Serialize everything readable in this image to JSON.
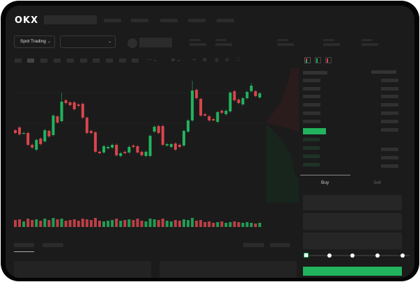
{
  "header": {
    "logo": "OKX",
    "nav_count": 5
  },
  "toolbar": {
    "market_select": "Spot Trading",
    "pair_select": ""
  },
  "order_book": {
    "view_icons": [
      "book-both-icon",
      "book-bids-icon",
      "book-asks-icon"
    ]
  },
  "trade": {
    "tabs": [
      "Buy",
      "Sell"
    ],
    "active_tab": "Buy",
    "slider_percent": 0,
    "slider_stops": [
      0,
      25,
      50,
      75,
      100
    ]
  },
  "colors": {
    "up": "#22b35e",
    "down": "#d9454d",
    "background": "#1b1b1b",
    "accent": "#22b35e"
  },
  "chart_data": {
    "type": "candlestick",
    "candles": [
      [
        64,
        60,
        66,
        58
      ],
      [
        68,
        58,
        70,
        56
      ],
      [
        59,
        60,
        61,
        58
      ],
      [
        60,
        43,
        62,
        41
      ],
      [
        43,
        39,
        45,
        37
      ],
      [
        36,
        50,
        52,
        34
      ],
      [
        52,
        44,
        54,
        42
      ],
      [
        48,
        64,
        66,
        46
      ],
      [
        63,
        55,
        65,
        53
      ],
      [
        57,
        85,
        87,
        55
      ],
      [
        84,
        75,
        86,
        73
      ],
      [
        77,
        105,
        118,
        75
      ],
      [
        107,
        103,
        109,
        101
      ],
      [
        104,
        100,
        106,
        98
      ],
      [
        104,
        94,
        106,
        92
      ],
      [
        101,
        99,
        103,
        97
      ],
      [
        102,
        82,
        104,
        80
      ],
      [
        82,
        60,
        84,
        58
      ],
      [
        63,
        60,
        65,
        58
      ],
      [
        61,
        33,
        63,
        31
      ],
      [
        33,
        31,
        35,
        29
      ],
      [
        32,
        41,
        43,
        30
      ],
      [
        38,
        40,
        42,
        36
      ],
      [
        39,
        43,
        45,
        37
      ],
      [
        43,
        28,
        45,
        26
      ],
      [
        27,
        31,
        33,
        25
      ],
      [
        33,
        31,
        35,
        29
      ],
      [
        32,
        40,
        42,
        30
      ],
      [
        42,
        40,
        44,
        38
      ],
      [
        41,
        32,
        43,
        30
      ],
      [
        33,
        28,
        35,
        26
      ],
      [
        27,
        33,
        35,
        25
      ],
      [
        27,
        56,
        58,
        25
      ],
      [
        62,
        69,
        71,
        60
      ],
      [
        70,
        60,
        72,
        58
      ],
      [
        70,
        43,
        72,
        41
      ],
      [
        42,
        44,
        46,
        40
      ],
      [
        40,
        44,
        46,
        38
      ],
      [
        45,
        36,
        47,
        34
      ],
      [
        43,
        40,
        45,
        38
      ],
      [
        42,
        63,
        65,
        40
      ],
      [
        62,
        78,
        80,
        60
      ],
      [
        78,
        121,
        135,
        76
      ],
      [
        122,
        110,
        124,
        108
      ],
      [
        109,
        85,
        111,
        83
      ],
      [
        87,
        85,
        89,
        83
      ],
      [
        84,
        78,
        86,
        76
      ],
      [
        80,
        78,
        82,
        77
      ],
      [
        76,
        90,
        92,
        74
      ],
      [
        92,
        89,
        94,
        87
      ],
      [
        87,
        92,
        94,
        85
      ],
      [
        91,
        118,
        120,
        89
      ],
      [
        120,
        107,
        122,
        105
      ],
      [
        108,
        103,
        110,
        101
      ],
      [
        101,
        110,
        112,
        99
      ],
      [
        110,
        119,
        121,
        108
      ],
      [
        120,
        128,
        132,
        118
      ],
      [
        120,
        113,
        122,
        111
      ],
      [
        111,
        117,
        119,
        109
      ]
    ],
    "volume": [
      10,
      11,
      8,
      12,
      10,
      11,
      9,
      12,
      10,
      13,
      11,
      12,
      9,
      10,
      11,
      9,
      12,
      11,
      10,
      13,
      9,
      8,
      9,
      10,
      12,
      9,
      10,
      11,
      10,
      12,
      9,
      8,
      12,
      11,
      10,
      12,
      9,
      8,
      10,
      9,
      11,
      10,
      13,
      9,
      10,
      7,
      8,
      6,
      7,
      8,
      6,
      7,
      8,
      7,
      6,
      7,
      6,
      5,
      6
    ],
    "depth": {
      "asks_color": "#d9454d",
      "bids_color": "#22b35e"
    }
  }
}
